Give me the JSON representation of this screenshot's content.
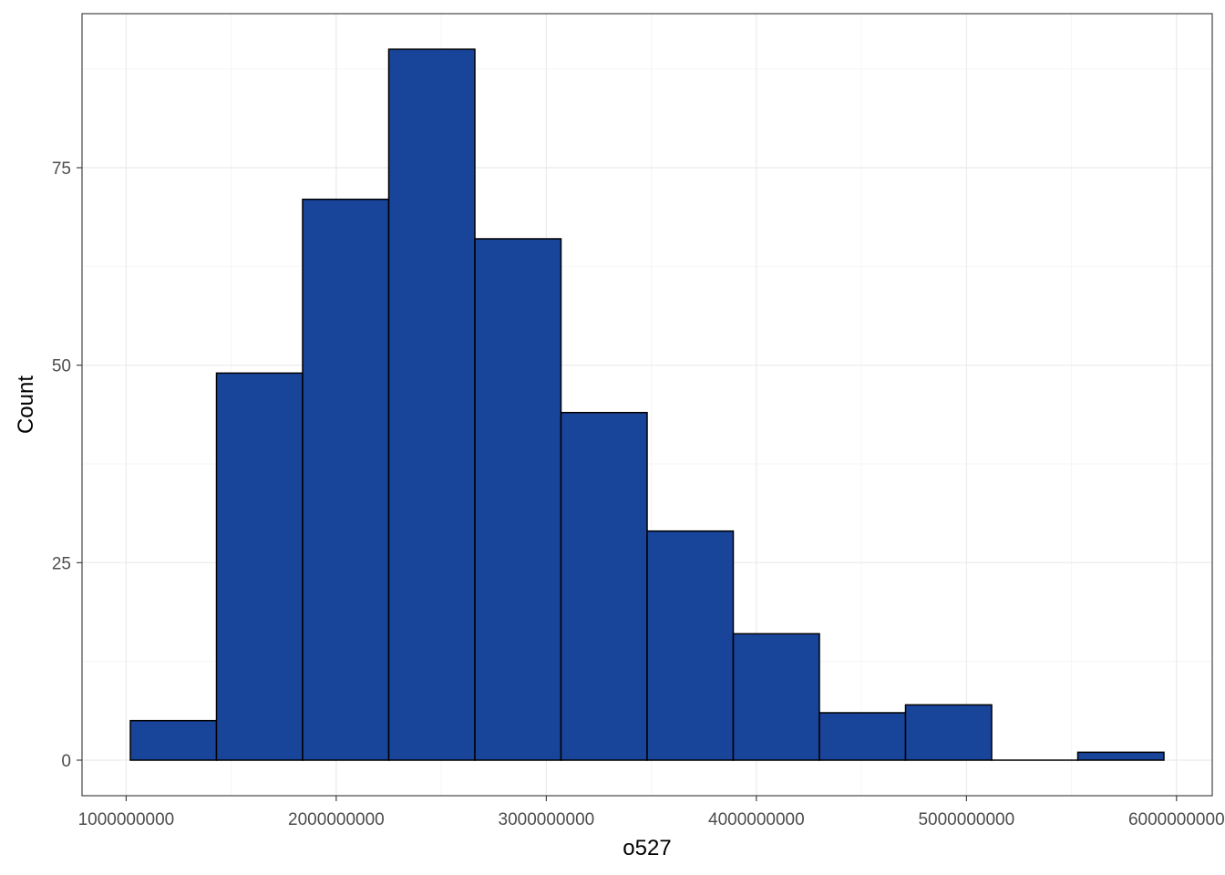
{
  "chart_data": {
    "type": "bar",
    "subtype": "histogram",
    "title": "",
    "xlabel": "o527",
    "ylabel": "Count",
    "bin_edges": [
      1020000000,
      1430000000,
      1840000000,
      2250000000,
      2660000000,
      3070000000,
      3480000000,
      3890000000,
      4300000000,
      4710000000,
      5120000000,
      5530000000,
      5940000000
    ],
    "values": [
      5,
      49,
      71,
      90,
      66,
      44,
      29,
      16,
      6,
      7,
      0,
      1
    ],
    "xlim": [
      790000000,
      6170000000
    ],
    "ylim": [
      -4.5,
      94.5
    ],
    "x_ticks": [
      1000000000,
      2000000000,
      3000000000,
      4000000000,
      5000000000,
      6000000000
    ],
    "x_tick_labels": [
      "1000000000",
      "2000000000",
      "3000000000",
      "4000000000",
      "5000000000",
      "6000000000"
    ],
    "y_ticks": [
      0,
      25,
      50,
      75
    ],
    "y_tick_labels": [
      "0",
      "25",
      "50",
      "75"
    ],
    "grid": true,
    "legend": "none",
    "colors": {
      "bar_fill": "#18449a",
      "bar_stroke": "#000000",
      "grid_major": "#ebebeb",
      "grid_minor": "#f5f5f5",
      "panel_border": "#333333",
      "tick_text": "#4d4d4d"
    }
  }
}
